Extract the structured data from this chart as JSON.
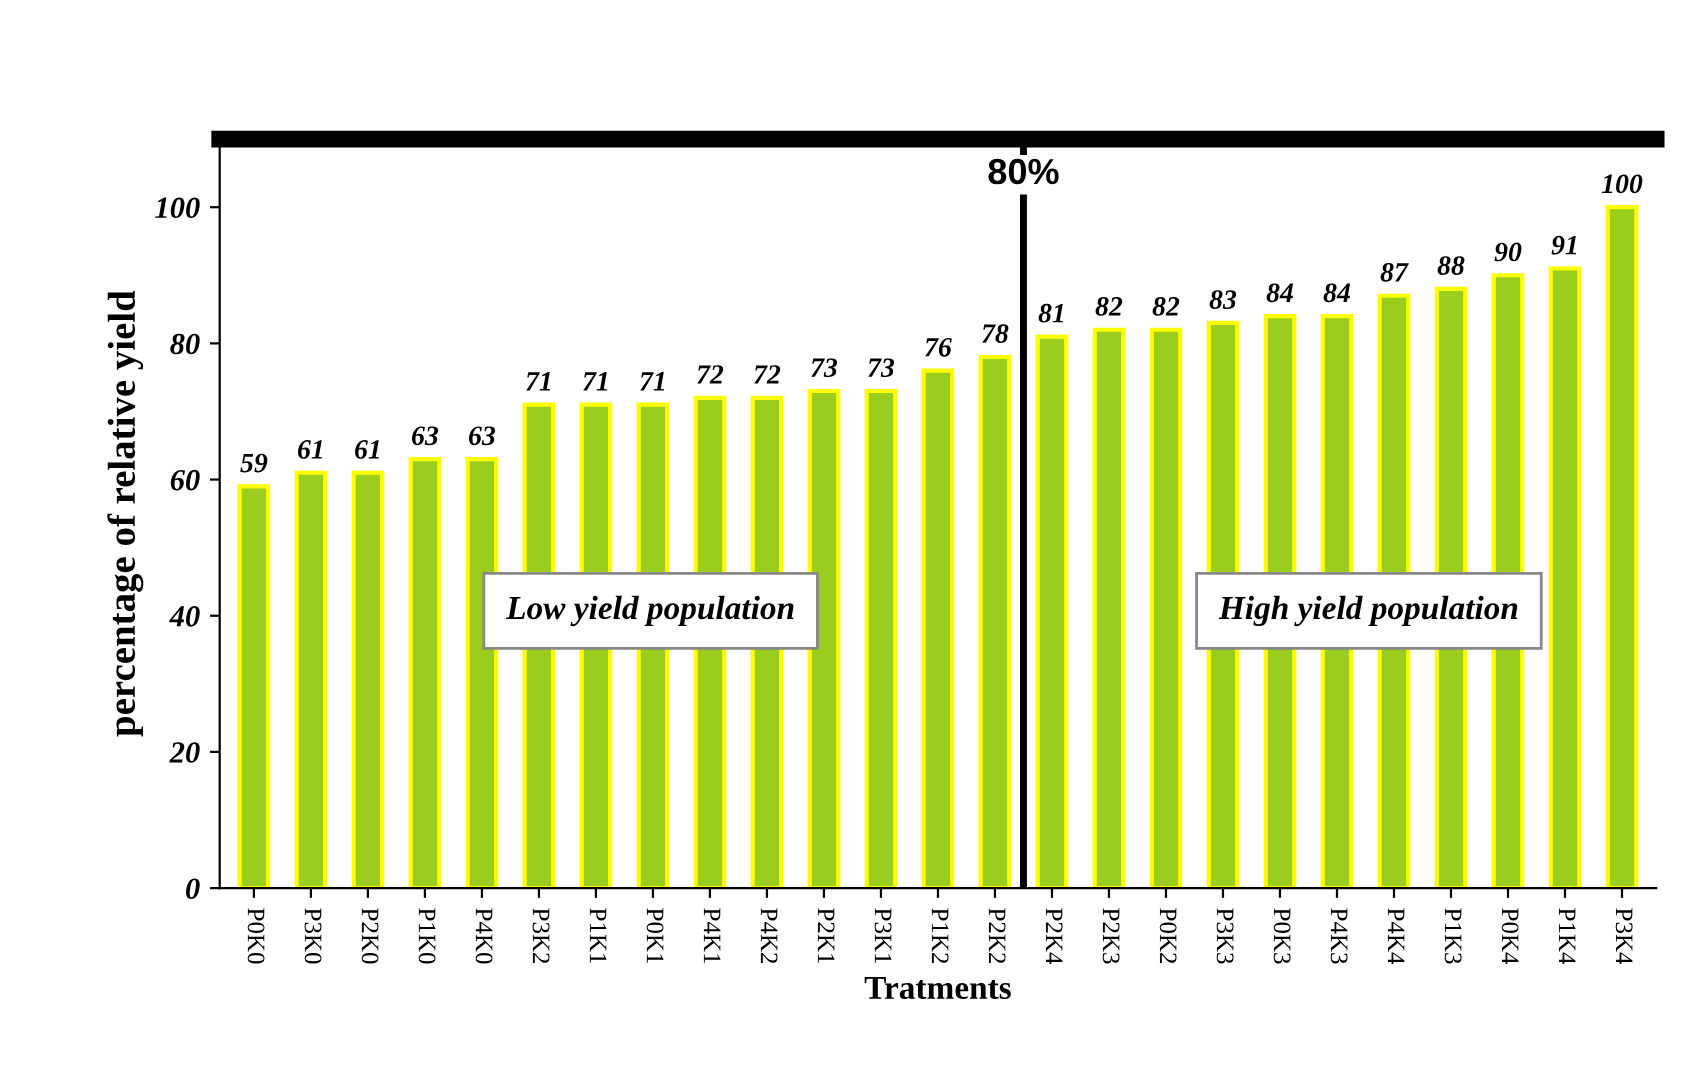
{
  "chart_data": {
    "type": "bar",
    "xlabel": "Tratments",
    "ylabel": "percentage of relative yield",
    "categories": [
      "P0K0",
      "P3K0",
      "P2K0",
      "P1K0",
      "P4K0",
      "P3K2",
      "P1K1",
      "P0K1",
      "P4K1",
      "P4K2",
      "P2K1",
      "P3K1",
      "P1K2",
      "P2K2",
      "P2K4",
      "P2K3",
      "P0K2",
      "P3K3",
      "P0K3",
      "P4K3",
      "P4K4",
      "P1K3",
      "P0K4",
      "P1K4",
      "P3K4"
    ],
    "values": [
      59,
      61,
      61,
      63,
      63,
      71,
      71,
      71,
      72,
      72,
      73,
      73,
      76,
      78,
      81,
      82,
      82,
      83,
      84,
      84,
      87,
      88,
      90,
      91,
      100
    ],
    "color": "#9acd1e",
    "data_labels": true,
    "grid": false,
    "ylim": [
      0,
      110
    ],
    "yticks": [
      0,
      20,
      40,
      60,
      80,
      100
    ],
    "annotations": [
      "80%",
      "Low yield population",
      "High yield population"
    ]
  }
}
